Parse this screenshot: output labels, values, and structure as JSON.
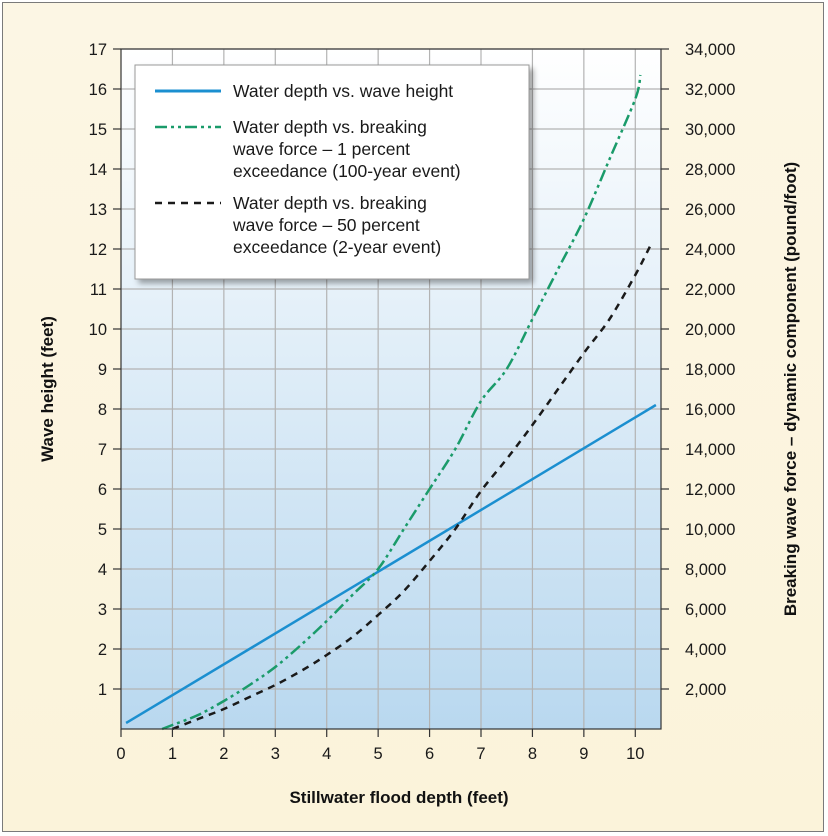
{
  "chart_data": {
    "type": "line",
    "xlabel": "Stillwater flood depth (feet)",
    "ylabel_left": "Wave height (feet)",
    "ylabel_right": "Breaking wave force – dynamic component (pound/foot)",
    "xlim": [
      0,
      10.5
    ],
    "ylim_left": [
      0,
      17
    ],
    "ylim_right": [
      0,
      34000
    ],
    "x_ticks": [
      "0",
      "1",
      "2",
      "3",
      "4",
      "5",
      "6",
      "7",
      "8",
      "9",
      "10"
    ],
    "y_left_ticks": [
      "1",
      "2",
      "3",
      "4",
      "5",
      "6",
      "7",
      "8",
      "9",
      "10",
      "11",
      "12",
      "13",
      "14",
      "15",
      "16",
      "17"
    ],
    "y_right_ticks": [
      "2,000",
      "4,000",
      "6,000",
      "8,000",
      "10,000",
      "12,000",
      "14,000",
      "16,000",
      "18,000",
      "20,000",
      "22,000",
      "24,000",
      "26,000",
      "28,000",
      "30,000",
      "32,000",
      "34,000"
    ],
    "grid": true,
    "legend_position": "top-left",
    "colors": {
      "wave_height": "#1b8fd0",
      "force_100yr": "#1a9b6a",
      "force_2yr": "#1a1a1a"
    },
    "series": [
      {
        "name": "Water depth vs. wave height",
        "axis": "left",
        "style": "solid",
        "x": [
          0.1,
          10.4
        ],
        "y": [
          0.15,
          8.1
        ]
      },
      {
        "name": "Water depth vs. breaking wave force – 1 percent exceedance (100-year event)",
        "legend_lines": [
          "Water depth vs. breaking",
          "wave force – 1 percent",
          "exceedance (100-year event)"
        ],
        "axis": "right",
        "style": "dashdotdot",
        "x": [
          0.8,
          1,
          1.5,
          2,
          2.5,
          3,
          3.5,
          4,
          4.5,
          5,
          5.5,
          6,
          6.5,
          7,
          7.5,
          8,
          8.5,
          9,
          9.5,
          10,
          10.1
        ],
        "y": [
          0,
          200,
          700,
          1400,
          2200,
          3100,
          4200,
          5400,
          6700,
          8000,
          10000,
          12000,
          14000,
          16400,
          18000,
          20500,
          23000,
          25500,
          28500,
          31500,
          32700
        ]
      },
      {
        "name": "Water depth vs. breaking wave force – 50 percent exceedance (2-year event)",
        "legend_lines": [
          "Water depth vs. breaking",
          "wave force – 50 percent",
          "exceedance (2-year event)"
        ],
        "axis": "right",
        "style": "dashed",
        "x": [
          1,
          1.5,
          2,
          2.5,
          3,
          3.5,
          4,
          4.5,
          5,
          5.5,
          6,
          6.5,
          7,
          7.5,
          8,
          8.5,
          9,
          9.5,
          10,
          10.3
        ],
        "y": [
          0,
          500,
          1000,
          1600,
          2200,
          2900,
          3700,
          4600,
          5700,
          6900,
          8400,
          10000,
          11900,
          13500,
          15200,
          17000,
          18800,
          20500,
          22700,
          24200
        ]
      }
    ]
  }
}
